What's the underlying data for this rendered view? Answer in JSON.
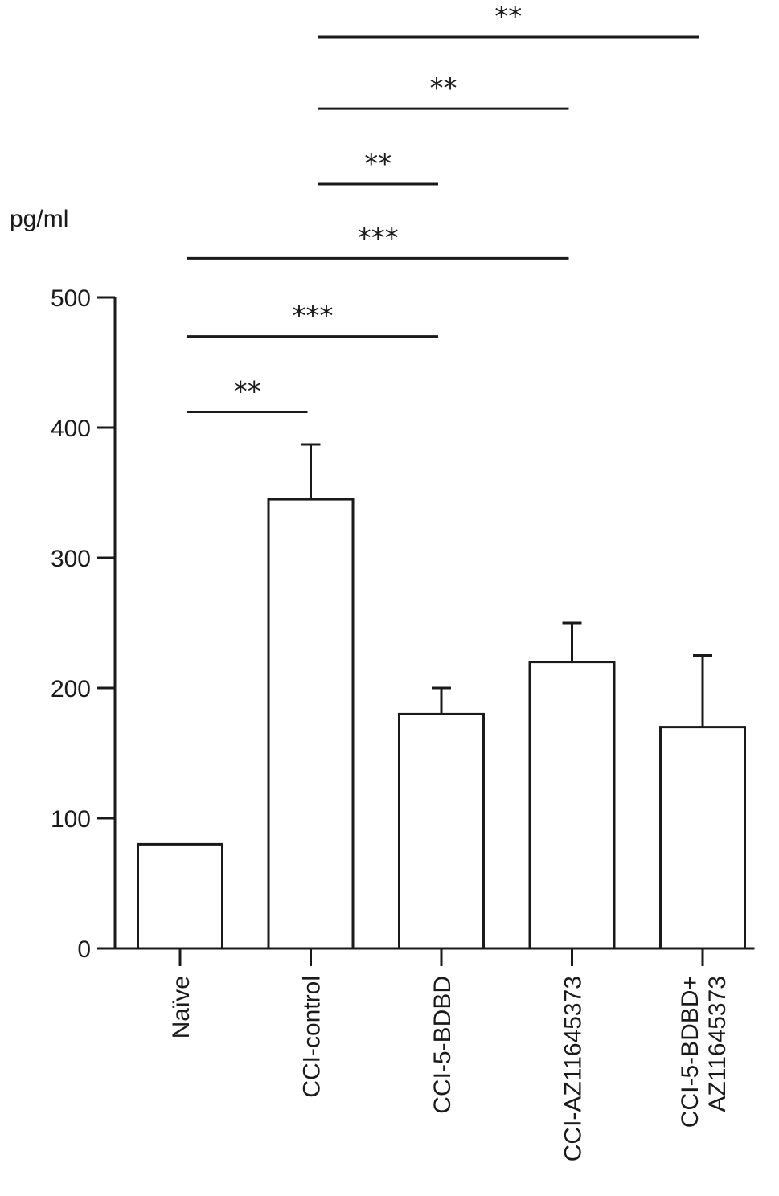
{
  "chart_data": {
    "type": "bar",
    "ylabel": "pg/ml",
    "ylim": [
      0,
      500
    ],
    "yticks": [
      0,
      100,
      200,
      300,
      400,
      500
    ],
    "categories": [
      [
        "Naïve"
      ],
      [
        "CCI-control"
      ],
      [
        "CCI-5-BDBD"
      ],
      [
        "CCI-AZ11645373"
      ],
      [
        "CCI-5-BDBD+",
        "AZ11645373"
      ]
    ],
    "values": [
      80,
      345,
      180,
      220,
      170
    ],
    "errors": [
      0,
      42,
      20,
      30,
      55
    ],
    "bar_fill": "#ffffff",
    "bar_stroke": "#1a1a1a",
    "significance": [
      {
        "from": 0,
        "to": 1,
        "label": "**",
        "level": 412
      },
      {
        "from": 0,
        "to": 2,
        "label": "***",
        "level": 470
      },
      {
        "from": 0,
        "to": 3,
        "label": "***",
        "level": 530
      },
      {
        "from": 1,
        "to": 2,
        "label": "**",
        "level": 587
      },
      {
        "from": 1,
        "to": 3,
        "label": "**",
        "level": 645
      },
      {
        "from": 1,
        "to": 4,
        "label": "**",
        "level": 700
      }
    ]
  }
}
